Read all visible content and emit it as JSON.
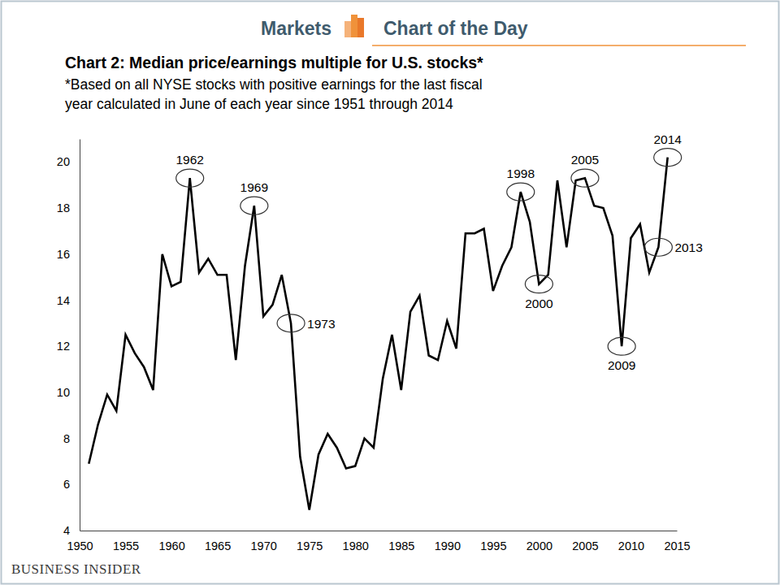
{
  "chart_data": {
    "type": "line",
    "header": {
      "left": "Markets",
      "right": "Chart of the Day"
    },
    "title": "Chart 2: Median price/earnings multiple for U.S. stocks*",
    "subtitle": [
      "*Based on all NYSE stocks with positive earnings for the last fiscal",
      "year calculated in June of each year since 1951 through 2014"
    ],
    "source": "BUSINESS INSIDER",
    "color": "#000000",
    "x": [
      1951,
      1952,
      1953,
      1954,
      1955,
      1956,
      1957,
      1958,
      1959,
      1960,
      1961,
      1962,
      1963,
      1964,
      1965,
      1966,
      1967,
      1968,
      1969,
      1970,
      1971,
      1972,
      1973,
      1974,
      1975,
      1976,
      1977,
      1978,
      1979,
      1980,
      1981,
      1982,
      1983,
      1984,
      1985,
      1986,
      1987,
      1988,
      1989,
      1990,
      1991,
      1992,
      1993,
      1994,
      1995,
      1996,
      1997,
      1998,
      1999,
      2000,
      2001,
      2002,
      2003,
      2004,
      2005,
      2006,
      2007,
      2008,
      2009,
      2010,
      2011,
      2012,
      2013,
      2014
    ],
    "values": [
      6.9,
      8.6,
      9.9,
      9.2,
      12.5,
      11.7,
      11.1,
      10.1,
      16.0,
      14.6,
      14.8,
      19.3,
      15.2,
      15.8,
      15.1,
      15.1,
      11.4,
      15.5,
      18.1,
      13.3,
      13.8,
      15.1,
      13.0,
      7.2,
      4.9,
      7.3,
      8.2,
      7.6,
      6.7,
      6.8,
      8.0,
      7.6,
      10.6,
      12.5,
      10.1,
      13.5,
      14.2,
      11.6,
      11.4,
      13.1,
      11.9,
      16.9,
      16.9,
      17.1,
      14.4,
      15.5,
      16.3,
      18.7,
      17.4,
      14.7,
      15.1,
      19.2,
      16.3,
      19.2,
      19.3,
      18.1,
      18.0,
      16.8,
      12.0,
      16.7,
      17.3,
      15.2,
      16.3,
      20.2
    ],
    "xlim": [
      1950,
      2015
    ],
    "xticks": [
      1950,
      1955,
      1960,
      1965,
      1970,
      1975,
      1980,
      1985,
      1990,
      1995,
      2000,
      2005,
      2010,
      2015
    ],
    "ylim": [
      4,
      21
    ],
    "yticks": [
      4,
      6,
      8,
      10,
      12,
      14,
      16,
      18,
      20
    ],
    "grid": false,
    "annotations": [
      {
        "x": 1962,
        "label": "1962"
      },
      {
        "x": 1969,
        "label": "1969"
      },
      {
        "x": 1973,
        "label": "1973"
      },
      {
        "x": 1998,
        "label": "1998"
      },
      {
        "x": 2000,
        "label": "2000"
      },
      {
        "x": 2005,
        "label": "2005"
      },
      {
        "x": 2009,
        "label": "2009"
      },
      {
        "x": 2013,
        "label": "2013"
      },
      {
        "x": 2014,
        "label": "2014"
      }
    ]
  }
}
